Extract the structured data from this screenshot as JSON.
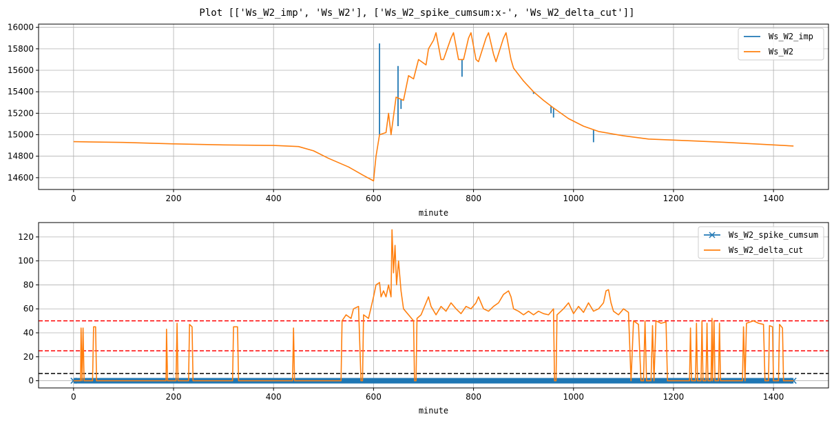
{
  "figure": {
    "suptitle": "Plot [['Ws_W2_imp', 'Ws_W2'], ['Ws_W2_spike_cumsum:x-', 'Ws_W2_delta_cut']]"
  },
  "chart_data": [
    {
      "type": "line",
      "xlabel": "minute",
      "ylabel": "",
      "xlim": [
        -70,
        1510
      ],
      "ylim": [
        14490,
        16030
      ],
      "xticks": [
        0,
        200,
        400,
        600,
        800,
        1000,
        1200,
        1400
      ],
      "yticks": [
        14600,
        14800,
        15000,
        15200,
        15400,
        15600,
        15800,
        16000
      ],
      "grid": true,
      "legend": "top-right",
      "series": [
        {
          "name": "Ws_W2_imp",
          "color": "#1f77b4",
          "spikes": [
            [
              612,
              15850
            ],
            [
              649,
              15640
            ],
            [
              649,
              15080
            ],
            [
              655,
              15240
            ],
            [
              777,
              15540
            ],
            [
              920,
              15380
            ],
            [
              955,
              15200
            ],
            [
              960,
              15160
            ],
            [
              1040,
              14930
            ]
          ]
        },
        {
          "name": "Ws_W2",
          "color": "#ff7f0e",
          "points": [
            [
              0,
              14935
            ],
            [
              100,
              14928
            ],
            [
              200,
              14915
            ],
            [
              300,
              14905
            ],
            [
              400,
              14900
            ],
            [
              450,
              14890
            ],
            [
              480,
              14850
            ],
            [
              510,
              14780
            ],
            [
              550,
              14700
            ],
            [
              580,
              14620
            ],
            [
              600,
              14570
            ],
            [
              605,
              14800
            ],
            [
              612,
              15000
            ],
            [
              625,
              15020
            ],
            [
              630,
              15200
            ],
            [
              635,
              15000
            ],
            [
              645,
              15350
            ],
            [
              660,
              15320
            ],
            [
              670,
              15550
            ],
            [
              680,
              15520
            ],
            [
              690,
              15700
            ],
            [
              705,
              15650
            ],
            [
              710,
              15800
            ],
            [
              720,
              15880
            ],
            [
              725,
              15950
            ],
            [
              735,
              15700
            ],
            [
              740,
              15700
            ],
            [
              755,
              15900
            ],
            [
              760,
              15950
            ],
            [
              770,
              15700
            ],
            [
              780,
              15700
            ],
            [
              790,
              15900
            ],
            [
              795,
              15950
            ],
            [
              805,
              15700
            ],
            [
              810,
              15680
            ],
            [
              825,
              15900
            ],
            [
              830,
              15950
            ],
            [
              840,
              15750
            ],
            [
              845,
              15680
            ],
            [
              860,
              15900
            ],
            [
              865,
              15950
            ],
            [
              875,
              15700
            ],
            [
              880,
              15620
            ],
            [
              900,
              15500
            ],
            [
              920,
              15400
            ],
            [
              940,
              15320
            ],
            [
              960,
              15250
            ],
            [
              990,
              15150
            ],
            [
              1020,
              15080
            ],
            [
              1050,
              15030
            ],
            [
              1100,
              14990
            ],
            [
              1150,
              14960
            ],
            [
              1200,
              14950
            ],
            [
              1300,
              14930
            ],
            [
              1400,
              14905
            ],
            [
              1440,
              14895
            ]
          ]
        }
      ]
    },
    {
      "type": "line",
      "xlabel": "minute",
      "ylabel": "",
      "xlim": [
        -70,
        1510
      ],
      "ylim": [
        -6,
        132
      ],
      "xticks": [
        0,
        200,
        400,
        600,
        800,
        1000,
        1200,
        1400
      ],
      "yticks": [
        0,
        20,
        40,
        60,
        80,
        100,
        120
      ],
      "grid": true,
      "legend": "top-right",
      "hlines": [
        {
          "y": 50,
          "color": "#ff0000"
        },
        {
          "y": 25,
          "color": "#ff0000"
        },
        {
          "y": 6,
          "color": "#000000"
        }
      ],
      "series": [
        {
          "name": "Ws_W2_spike_cumsum",
          "color": "#1f77b4",
          "marker": "x",
          "points": [
            [
              0,
              0
            ],
            [
              1440,
              0
            ]
          ]
        },
        {
          "name": "Ws_W2_delta_cut",
          "color": "#ff7f0e",
          "points": [
            [
              0,
              0
            ],
            [
              14,
              0
            ],
            [
              15,
              44
            ],
            [
              17,
              0
            ],
            [
              19,
              44
            ],
            [
              21,
              0
            ],
            [
              38,
              0
            ],
            [
              40,
              45
            ],
            [
              44,
              45
            ],
            [
              46,
              0
            ],
            [
              185,
              0
            ],
            [
              186,
              43
            ],
            [
              188,
              0
            ],
            [
              205,
              0
            ],
            [
              207,
              48
            ],
            [
              209,
              0
            ],
            [
              230,
              0
            ],
            [
              232,
              47
            ],
            [
              237,
              45
            ],
            [
              239,
              0
            ],
            [
              318,
              0
            ],
            [
              320,
              45
            ],
            [
              328,
              45
            ],
            [
              330,
              0
            ],
            [
              438,
              0
            ],
            [
              440,
              44
            ],
            [
              442,
              0
            ],
            [
              535,
              0
            ],
            [
              537,
              50
            ],
            [
              545,
              55
            ],
            [
              555,
              52
            ],
            [
              560,
              60
            ],
            [
              570,
              62
            ],
            [
              575,
              0
            ],
            [
              578,
              0
            ],
            [
              580,
              55
            ],
            [
              590,
              52
            ],
            [
              600,
              70
            ],
            [
              605,
              80
            ],
            [
              612,
              82
            ],
            [
              615,
              70
            ],
            [
              620,
              75
            ],
            [
              625,
              70
            ],
            [
              630,
              80
            ],
            [
              635,
              70
            ],
            [
              637,
              126
            ],
            [
              640,
              90
            ],
            [
              643,
              113
            ],
            [
              646,
              80
            ],
            [
              650,
              100
            ],
            [
              655,
              75
            ],
            [
              660,
              60
            ],
            [
              670,
              55
            ],
            [
              680,
              50
            ],
            [
              682,
              0
            ],
            [
              685,
              0
            ],
            [
              687,
              52
            ],
            [
              695,
              55
            ],
            [
              705,
              65
            ],
            [
              710,
              70
            ],
            [
              715,
              62
            ],
            [
              725,
              55
            ],
            [
              735,
              62
            ],
            [
              745,
              58
            ],
            [
              755,
              65
            ],
            [
              765,
              60
            ],
            [
              775,
              56
            ],
            [
              785,
              62
            ],
            [
              795,
              60
            ],
            [
              805,
              65
            ],
            [
              810,
              70
            ],
            [
              820,
              60
            ],
            [
              830,
              58
            ],
            [
              840,
              62
            ],
            [
              850,
              65
            ],
            [
              860,
              72
            ],
            [
              870,
              75
            ],
            [
              875,
              70
            ],
            [
              880,
              60
            ],
            [
              890,
              58
            ],
            [
              900,
              55
            ],
            [
              910,
              58
            ],
            [
              920,
              55
            ],
            [
              930,
              58
            ],
            [
              940,
              56
            ],
            [
              950,
              55
            ],
            [
              960,
              60
            ],
            [
              962,
              0
            ],
            [
              965,
              0
            ],
            [
              967,
              55
            ],
            [
              980,
              60
            ],
            [
              990,
              65
            ],
            [
              1000,
              56
            ],
            [
              1010,
              62
            ],
            [
              1020,
              57
            ],
            [
              1030,
              65
            ],
            [
              1040,
              58
            ],
            [
              1050,
              60
            ],
            [
              1060,
              65
            ],
            [
              1065,
              75
            ],
            [
              1070,
              76
            ],
            [
              1075,
              65
            ],
            [
              1080,
              58
            ],
            [
              1090,
              55
            ],
            [
              1100,
              60
            ],
            [
              1110,
              57
            ],
            [
              1115,
              0
            ],
            [
              1120,
              50
            ],
            [
              1130,
              47
            ],
            [
              1135,
              0
            ],
            [
              1140,
              0
            ],
            [
              1143,
              50
            ],
            [
              1146,
              0
            ],
            [
              1155,
              0
            ],
            [
              1158,
              46
            ],
            [
              1161,
              0
            ],
            [
              1165,
              50
            ],
            [
              1175,
              48
            ],
            [
              1185,
              49
            ],
            [
              1188,
              0
            ],
            [
              1232,
              0
            ],
            [
              1234,
              44
            ],
            [
              1236,
              0
            ],
            [
              1244,
              0
            ],
            [
              1246,
              48
            ],
            [
              1248,
              0
            ],
            [
              1255,
              0
            ],
            [
              1257,
              50
            ],
            [
              1259,
              0
            ],
            [
              1265,
              0
            ],
            [
              1267,
              48
            ],
            [
              1269,
              0
            ],
            [
              1275,
              0
            ],
            [
              1277,
              52
            ],
            [
              1278,
              0
            ],
            [
              1281,
              50
            ],
            [
              1283,
              0
            ],
            [
              1290,
              0
            ],
            [
              1292,
              48
            ],
            [
              1294,
              0
            ],
            [
              1338,
              0
            ],
            [
              1340,
              45
            ],
            [
              1343,
              0
            ],
            [
              1346,
              48
            ],
            [
              1360,
              50
            ],
            [
              1370,
              48
            ],
            [
              1380,
              47
            ],
            [
              1383,
              0
            ],
            [
              1390,
              0
            ],
            [
              1392,
              46
            ],
            [
              1398,
              45
            ],
            [
              1400,
              0
            ],
            [
              1410,
              0
            ],
            [
              1412,
              47
            ],
            [
              1418,
              44
            ],
            [
              1420,
              0
            ],
            [
              1440,
              0
            ]
          ]
        }
      ]
    }
  ]
}
